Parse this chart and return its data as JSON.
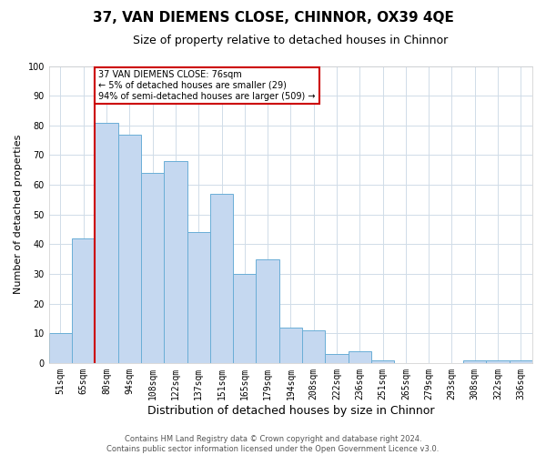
{
  "title": "37, VAN DIEMENS CLOSE, CHINNOR, OX39 4QE",
  "subtitle": "Size of property relative to detached houses in Chinnor",
  "xlabel": "Distribution of detached houses by size in Chinnor",
  "ylabel": "Number of detached properties",
  "bar_labels": [
    "51sqm",
    "65sqm",
    "80sqm",
    "94sqm",
    "108sqm",
    "122sqm",
    "137sqm",
    "151sqm",
    "165sqm",
    "179sqm",
    "194sqm",
    "208sqm",
    "222sqm",
    "236sqm",
    "251sqm",
    "265sqm",
    "279sqm",
    "293sqm",
    "308sqm",
    "322sqm",
    "336sqm"
  ],
  "bar_values": [
    10,
    42,
    81,
    77,
    64,
    68,
    44,
    57,
    30,
    35,
    12,
    11,
    3,
    4,
    1,
    0,
    0,
    0,
    1,
    1,
    1
  ],
  "bar_color": "#c5d8f0",
  "bar_edgecolor": "#6aaed6",
  "vline_color": "#cc0000",
  "vline_idx": 2,
  "ylim": [
    0,
    100
  ],
  "yticks": [
    0,
    10,
    20,
    30,
    40,
    50,
    60,
    70,
    80,
    90,
    100
  ],
  "annotation_box_text": "37 VAN DIEMENS CLOSE: 76sqm\n← 5% of detached houses are smaller (29)\n94% of semi-detached houses are larger (509) →",
  "annotation_box_color": "#cc0000",
  "footer_line1": "Contains HM Land Registry data © Crown copyright and database right 2024.",
  "footer_line2": "Contains public sector information licensed under the Open Government Licence v3.0.",
  "fig_background_color": "#ffffff",
  "plot_background_color": "#ffffff",
  "grid_color": "#d0dce8",
  "title_fontsize": 11,
  "subtitle_fontsize": 9,
  "tick_fontsize": 7,
  "ylabel_fontsize": 8,
  "xlabel_fontsize": 9,
  "footer_fontsize": 6
}
